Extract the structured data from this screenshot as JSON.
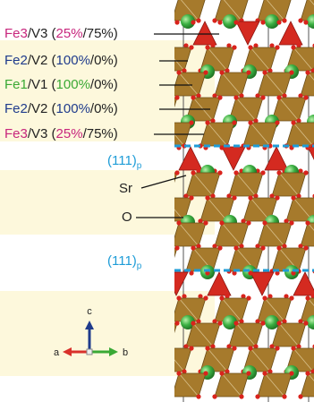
{
  "labels": [
    {
      "parts": [
        {
          "text": "Fe3",
          "color": "#c8267d"
        },
        {
          "text": "/V3 ("
        },
        {
          "text": "25%",
          "color": "#c8267d"
        },
        {
          "text": "/75%)"
        }
      ]
    },
    {
      "parts": [
        {
          "text": "Fe2",
          "color": "#1f3b8c"
        },
        {
          "text": "/V2 ("
        },
        {
          "text": "100%",
          "color": "#1f3b8c"
        },
        {
          "text": "/0%)"
        }
      ]
    },
    {
      "parts": [
        {
          "text": "Fe1",
          "color": "#3aa935"
        },
        {
          "text": "/V1 ("
        },
        {
          "text": "100%",
          "color": "#3aa935"
        },
        {
          "text": "/0%)"
        }
      ]
    },
    {
      "parts": [
        {
          "text": "Fe2",
          "color": "#1f3b8c"
        },
        {
          "text": "/V2 ("
        },
        {
          "text": "100%",
          "color": "#1f3b8c"
        },
        {
          "text": "/0%)"
        }
      ]
    },
    {
      "parts": [
        {
          "text": "Fe3",
          "color": "#c8267d"
        },
        {
          "text": "/V3 ("
        },
        {
          "text": "25%",
          "color": "#c8267d"
        },
        {
          "text": "/75%)"
        }
      ]
    }
  ],
  "plane_labels": [
    {
      "text": "(111)",
      "sub": "p"
    },
    {
      "text": "(111)",
      "sub": "p"
    }
  ],
  "atom_labels": [
    "Sr",
    "O"
  ],
  "axes": {
    "c": "c",
    "a": "a",
    "b": "b"
  }
}
